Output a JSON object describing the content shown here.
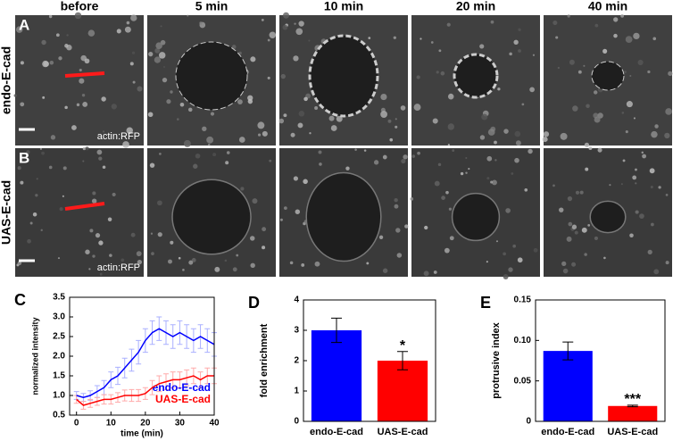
{
  "panels": {
    "columns": [
      "before",
      "5 min",
      "10 min",
      "20 min",
      "40 min"
    ],
    "rows": [
      {
        "letter": "A",
        "label": "endo-E-cad",
        "marker": "actin:RFP"
      },
      {
        "letter": "B",
        "label": "UAS-E-cad",
        "marker": "actin:RFP"
      }
    ]
  },
  "chart_data": [
    {
      "type": "line",
      "panel": "C",
      "xlabel": "time (min)",
      "ylabel": "normalized intensity",
      "x": [
        0,
        2,
        4,
        6,
        8,
        10,
        12,
        14,
        16,
        18,
        20,
        22,
        24,
        26,
        28,
        30,
        32,
        34,
        36,
        38,
        40
      ],
      "series": [
        {
          "name": "endo-E-cad",
          "color": "#0000ff",
          "error_color": "#aab0ff",
          "values": [
            1.0,
            0.95,
            1.0,
            1.1,
            1.2,
            1.4,
            1.5,
            1.7,
            1.9,
            2.1,
            2.4,
            2.6,
            2.7,
            2.6,
            2.5,
            2.6,
            2.5,
            2.4,
            2.5,
            2.4,
            2.3
          ],
          "errors": [
            0.1,
            0.1,
            0.12,
            0.15,
            0.18,
            0.2,
            0.22,
            0.25,
            0.28,
            0.3,
            0.3,
            0.3,
            0.3,
            0.3,
            0.3,
            0.3,
            0.3,
            0.3,
            0.3,
            0.3,
            0.3
          ]
        },
        {
          "name": "UAS-E-cad",
          "color": "#ff0000",
          "error_color": "#ffaaaa",
          "values": [
            0.9,
            0.75,
            0.8,
            0.85,
            0.9,
            0.9,
            0.95,
            1.0,
            1.0,
            1.0,
            1.05,
            1.2,
            1.3,
            1.35,
            1.4,
            1.4,
            1.45,
            1.5,
            1.4,
            1.5,
            1.5
          ],
          "errors": [
            0.1,
            0.1,
            0.1,
            0.1,
            0.12,
            0.12,
            0.12,
            0.14,
            0.15,
            0.15,
            0.15,
            0.18,
            0.2,
            0.2,
            0.2,
            0.2,
            0.2,
            0.2,
            0.2,
            0.2,
            0.2
          ]
        }
      ],
      "xlim": [
        -2,
        40
      ],
      "ylim": [
        0.5,
        3.5
      ],
      "xticks": [
        0,
        10,
        20,
        30,
        40
      ],
      "yticks": [
        0.5,
        {
          "value": 1,
          "label": "1.0"
        },
        1.5,
        {
          "value": 2,
          "label": "2.0"
        },
        2.5,
        {
          "value": 3,
          "label": "3.0"
        },
        3.5
      ],
      "legend": "lower right"
    },
    {
      "type": "bar",
      "panel": "D",
      "ylabel": "fold enrichment",
      "categories": [
        "endo-E-cad",
        "UAS-E-cad"
      ],
      "values": [
        3,
        2
      ],
      "errors": [
        0.4,
        0.3
      ],
      "colors": [
        "#0000ff",
        "#ff0000"
      ],
      "ylim": [
        0,
        4
      ],
      "yticks": [
        0,
        1,
        2,
        3,
        4
      ],
      "annotations": [
        {
          "index": 1,
          "text": "*"
        }
      ]
    },
    {
      "type": "bar",
      "panel": "E",
      "ylabel": "protrusive index",
      "categories": [
        "endo-E-cad",
        "UAS-E-cad"
      ],
      "values": [
        0.087,
        0.019
      ],
      "errors": [
        0.011,
        0.001
      ],
      "colors": [
        "#0000ff",
        "#ff0000"
      ],
      "ylim": [
        0,
        0.15
      ],
      "yticks": [
        0,
        0.05,
        {
          "value": 0.1,
          "label": "0.10"
        },
        0.15
      ],
      "annotations": [
        {
          "index": 1,
          "text": "***"
        }
      ]
    }
  ]
}
